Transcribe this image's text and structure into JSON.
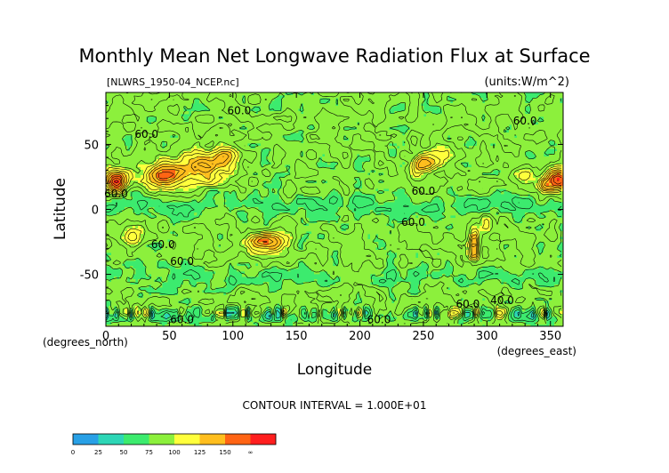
{
  "chart_data": {
    "type": "heatmap",
    "title": "Monthly Mean Net Longwave Radiation Flux at Surface",
    "file_label": "[NLWRS_1950-04_NCEP.nc]",
    "units_label": "(units:W/m^2)",
    "xlabel": "Longitude",
    "ylabel": "Latitude",
    "x_unit_label": "(degrees_east)",
    "y_unit_label": "(degrees_north)",
    "xlim": [
      0,
      360
    ],
    "ylim": [
      -90,
      90
    ],
    "x_ticks": [
      0,
      50,
      100,
      150,
      200,
      250,
      300,
      350
    ],
    "y_ticks": [
      50,
      0,
      -50
    ],
    "contour_interval_label": "CONTOUR INTERVAL = 1.000E+01",
    "contour_labels": [
      {
        "text": "60.0",
        "lon": 105,
        "lat": 76
      },
      {
        "text": "60.0",
        "lon": 330,
        "lat": 68
      },
      {
        "text": "60.0",
        "lon": 32,
        "lat": 58
      },
      {
        "text": "60.0",
        "lon": 8,
        "lat": 12
      },
      {
        "text": "60.0",
        "lon": 250,
        "lat": 14
      },
      {
        "text": "60.0",
        "lon": 242,
        "lat": -10
      },
      {
        "text": "60.0",
        "lon": 45,
        "lat": -27
      },
      {
        "text": "60.0",
        "lon": 60,
        "lat": -40
      },
      {
        "text": "60.0",
        "lon": 285,
        "lat": -73
      },
      {
        "text": "40.0",
        "lon": 312,
        "lat": -70
      },
      {
        "text": "60.0",
        "lon": 215,
        "lat": -85
      },
      {
        "text": "60.0",
        "lon": 60,
        "lat": -85
      }
    ],
    "colorbar": {
      "levels": [
        0,
        25,
        50,
        75,
        100,
        125,
        150
      ],
      "tick_labels": [
        "0",
        "25",
        "50",
        "75",
        "100",
        "125",
        "150",
        "∞"
      ],
      "colors": [
        "#28a0e6",
        "#2dd6b6",
        "#3ceb6e",
        "#8cf03c",
        "#ffff3c",
        "#ffbe1e",
        "#ff6414",
        "#ff1e1e"
      ]
    },
    "grid": false
  }
}
